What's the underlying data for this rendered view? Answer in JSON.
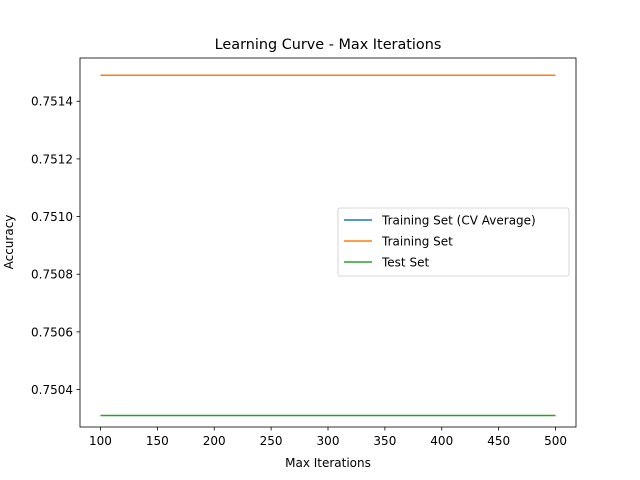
{
  "chart_data": {
    "type": "line",
    "title": "Learning Curve - Max Iterations",
    "xlabel": "Max Iterations",
    "ylabel": "Accuracy",
    "x": [
      100,
      200,
      300,
      400,
      500
    ],
    "xlim": [
      82,
      518
    ],
    "ylim": [
      0.75027,
      0.75155
    ],
    "xticks": [
      100,
      150,
      200,
      250,
      300,
      350,
      400,
      450,
      500
    ],
    "yticks": [
      0.7504,
      0.7506,
      0.7508,
      0.751,
      0.7512,
      0.7514
    ],
    "ytick_labels": [
      "0.7504",
      "0.7506",
      "0.7508",
      "0.7510",
      "0.7512",
      "0.7514"
    ],
    "grid": false,
    "legend_position": "center-right",
    "series": [
      {
        "name": "Training Set (CV Average)",
        "color": "#1f77b4",
        "values": [
          0.75149,
          0.75149,
          0.75149,
          0.75149,
          0.75149
        ]
      },
      {
        "name": "Training Set",
        "color": "#ff7f0e",
        "values": [
          0.75149,
          0.75149,
          0.75149,
          0.75149,
          0.75149
        ]
      },
      {
        "name": "Test Set",
        "color": "#2ca02c",
        "values": [
          0.75031,
          0.75031,
          0.75031,
          0.75031,
          0.75031
        ]
      }
    ]
  }
}
